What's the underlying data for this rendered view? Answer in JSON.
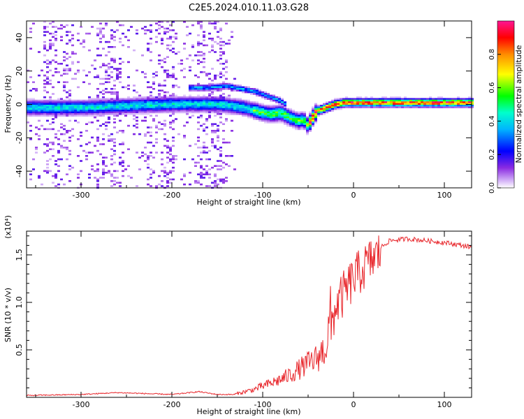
{
  "title": "C2E5.2024.010.11.03.G28",
  "chart_data": [
    {
      "type": "heatmap",
      "xlabel": "Height of straight line (km)",
      "ylabel": "Frequency (Hz)",
      "xlim": [
        -360,
        130
      ],
      "ylim": [
        -50,
        50
      ],
      "xticks": [
        -300,
        -200,
        -100,
        0,
        100
      ],
      "yticks": [
        -40,
        -20,
        0,
        20,
        40
      ],
      "colorbar": {
        "label": "Normalized spectral amplitude",
        "range": [
          0.0,
          1.0
        ],
        "ticks": [
          0.0,
          0.2,
          0.4,
          0.6,
          0.8
        ],
        "colormap": [
          "#ffffff",
          "#8a2be2",
          "#0000ff",
          "#00ffff",
          "#00ff00",
          "#ffff00",
          "#ff8000",
          "#ff0000",
          "#ff1a8c"
        ]
      },
      "main_signal_trace": {
        "x": [
          -360,
          -300,
          -200,
          -150,
          -120,
          -100,
          -90,
          -80,
          -70,
          -60,
          -55,
          -50,
          -45,
          -40,
          -30,
          -20,
          -10,
          0,
          50,
          100,
          130
        ],
        "y": [
          -2,
          -2,
          0,
          0,
          -2,
          -5,
          -6,
          -5,
          -8,
          -10,
          -9,
          -13,
          -8,
          -4,
          -2,
          0,
          1,
          1,
          1,
          1,
          1
        ]
      },
      "secondary_trace": {
        "x": [
          -180,
          -160,
          -140,
          -130,
          -120,
          -110,
          -100,
          -90,
          -80,
          -75
        ],
        "y": [
          10,
          10,
          11,
          10,
          9,
          8,
          6,
          4,
          2,
          0
        ]
      }
    },
    {
      "type": "line",
      "xlabel": "Height of straight line (km)",
      "ylabel": "SNR (10 * v/v)",
      "yscale_label": "(x10⁴)",
      "xlim": [
        -360,
        130
      ],
      "ylim": [
        0,
        1.75
      ],
      "xticks": [
        -300,
        -200,
        -100,
        0,
        100
      ],
      "yticks": [
        0.5,
        1.0,
        1.5
      ],
      "series": [
        {
          "color": "#e8262b",
          "x": [
            -360,
            -300,
            -260,
            -200,
            -170,
            -150,
            -130,
            -120,
            -110,
            -100,
            -90,
            -80,
            -70,
            -60,
            -50,
            -40,
            -30,
            -25,
            -20,
            -10,
            0,
            10,
            20,
            30,
            40,
            50,
            60,
            80,
            100,
            120,
            130
          ],
          "y": [
            0.02,
            0.03,
            0.05,
            0.03,
            0.06,
            0.03,
            0.03,
            0.05,
            0.07,
            0.1,
            0.13,
            0.16,
            0.2,
            0.25,
            0.3,
            0.35,
            0.45,
            0.75,
            1.0,
            1.15,
            1.3,
            1.4,
            1.5,
            1.58,
            1.65,
            1.66,
            1.67,
            1.65,
            1.63,
            1.6,
            1.58
          ]
        }
      ]
    }
  ]
}
